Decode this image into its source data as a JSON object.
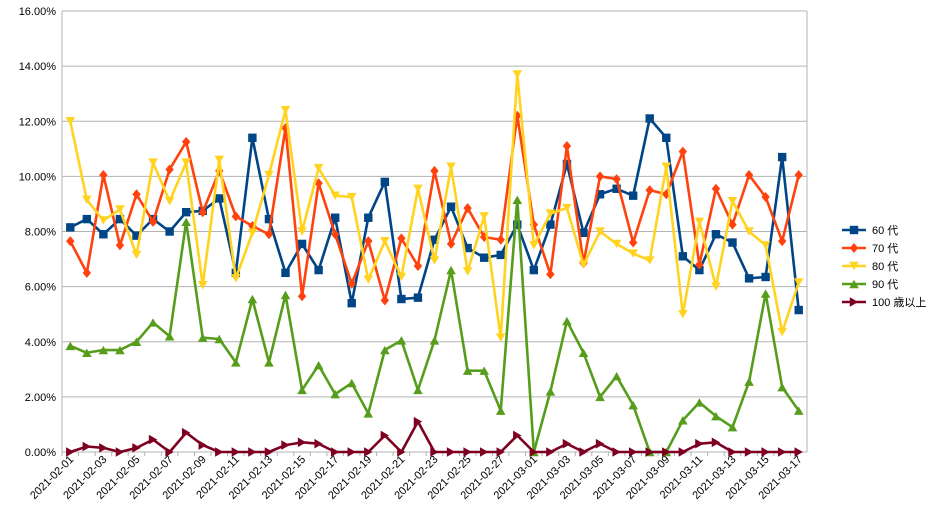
{
  "chart_data": {
    "type": "line",
    "x": [
      "2021-02-01",
      "2021-02-02",
      "2021-02-03",
      "2021-02-04",
      "2021-02-05",
      "2021-02-06",
      "2021-02-07",
      "2021-02-08",
      "2021-02-09",
      "2021-02-10",
      "2021-02-11",
      "2021-02-12",
      "2021-02-13",
      "2021-02-14",
      "2021-02-15",
      "2021-02-16",
      "2021-02-17",
      "2021-02-18",
      "2021-02-19",
      "2021-02-20",
      "2021-02-21",
      "2021-02-22",
      "2021-02-23",
      "2021-02-24",
      "2021-02-25",
      "2021-02-26",
      "2021-02-27",
      "2021-02-28",
      "2021-03-01",
      "2021-03-02",
      "2021-03-03",
      "2021-03-04",
      "2021-03-05",
      "2021-03-06",
      "2021-03-07",
      "2021-03-08",
      "2021-03-09",
      "2021-03-10",
      "2021-03-11",
      "2021-03-12",
      "2021-03-13",
      "2021-03-14",
      "2021-03-15",
      "2021-03-16",
      "2021-03-17"
    ],
    "x_tick_labels": [
      "2021-02-01",
      "2021-02-03",
      "2021-02-05",
      "2021-02-07",
      "2021-02-09",
      "2021-02-11",
      "2021-02-13",
      "2021-02-15",
      "2021-02-17",
      "2021-02-19",
      "2021-02-21",
      "2021-02-23",
      "2021-02-25",
      "2021-02-27",
      "2021-03-01",
      "2021-03-03",
      "2021-03-05",
      "2021-03-07",
      "2021-03-09",
      "2021-03-11",
      "2021-03-13",
      "2021-03-15",
      "2021-03-17"
    ],
    "y_tick_labels": [
      "0.00%",
      "2.00%",
      "4.00%",
      "6.00%",
      "8.00%",
      "10.00%",
      "12.00%",
      "14.00%",
      "16.00%"
    ],
    "ylim": [
      0,
      16
    ],
    "y_unit": "%",
    "grid": true,
    "legend_position": "right",
    "series": [
      {
        "name": "60 代",
        "color": "#004586",
        "marker": "square",
        "values": [
          8.15,
          8.45,
          7.9,
          8.45,
          7.85,
          8.45,
          8.0,
          8.7,
          8.75,
          9.2,
          6.5,
          11.4,
          8.45,
          6.5,
          7.55,
          6.6,
          8.5,
          5.4,
          8.5,
          9.8,
          5.55,
          5.6,
          7.7,
          8.9,
          7.4,
          7.05,
          7.15,
          8.25,
          6.6,
          8.25,
          10.45,
          7.95,
          9.35,
          9.55,
          9.3,
          12.1,
          11.4,
          7.1,
          6.6,
          7.9,
          7.6,
          6.3,
          6.35,
          10.7,
          5.15
        ]
      },
      {
        "name": "70 代",
        "color": "#ff420e",
        "marker": "diamond",
        "values": [
          7.65,
          6.5,
          10.05,
          7.5,
          9.35,
          8.35,
          10.25,
          11.25,
          8.7,
          10.2,
          8.55,
          8.2,
          7.9,
          11.75,
          5.65,
          9.75,
          7.9,
          6.1,
          7.65,
          5.5,
          7.75,
          6.75,
          10.2,
          7.55,
          8.85,
          7.8,
          7.7,
          12.2,
          8.25,
          6.45,
          11.1,
          6.85,
          10.0,
          9.9,
          7.6,
          9.5,
          9.35,
          10.9,
          6.8,
          9.55,
          8.25,
          10.05,
          9.25,
          7.65,
          10.05
        ]
      },
      {
        "name": "80 代",
        "color": "#ffd320",
        "marker": "triangle-down",
        "values": [
          12.0,
          9.15,
          8.4,
          8.8,
          7.15,
          10.5,
          9.1,
          10.5,
          6.05,
          10.6,
          6.3,
          7.95,
          10.05,
          12.4,
          8.0,
          10.3,
          9.3,
          9.25,
          6.25,
          7.65,
          6.35,
          9.55,
          6.95,
          10.35,
          6.55,
          8.55,
          4.15,
          13.7,
          7.5,
          8.65,
          8.85,
          6.8,
          8.0,
          7.55,
          7.2,
          6.95,
          10.35,
          5.0,
          8.35,
          6.0,
          9.1,
          8.0,
          7.5,
          4.35,
          6.15
        ]
      },
      {
        "name": "90 代",
        "color": "#579d1c",
        "marker": "triangle-up",
        "values": [
          3.85,
          3.6,
          3.7,
          3.7,
          4.0,
          4.7,
          4.2,
          8.35,
          4.15,
          4.1,
          3.25,
          5.55,
          3.25,
          5.7,
          2.25,
          3.15,
          2.1,
          2.5,
          1.4,
          3.7,
          4.05,
          2.25,
          4.05,
          6.6,
          2.95,
          2.95,
          1.5,
          9.15,
          0.0,
          2.2,
          4.75,
          3.6,
          2.0,
          2.75,
          1.7,
          0.0,
          0.0,
          1.15,
          1.8,
          1.3,
          0.9,
          2.55,
          5.75,
          2.35,
          1.5
        ]
      },
      {
        "name": "100 歳以上",
        "color": "#7e0021",
        "marker": "triangle-right",
        "values": [
          0.0,
          0.2,
          0.15,
          0.0,
          0.15,
          0.45,
          0.0,
          0.7,
          0.25,
          0.0,
          0.0,
          0.0,
          0.0,
          0.25,
          0.35,
          0.3,
          0.0,
          0.0,
          0.0,
          0.6,
          0.0,
          1.1,
          0.0,
          0.0,
          0.0,
          0.0,
          0.0,
          0.6,
          0.0,
          0.0,
          0.3,
          0.0,
          0.3,
          0.0,
          0.0,
          0.0,
          0.0,
          0.0,
          0.3,
          0.35,
          0.0,
          0.0,
          0.0,
          0.0,
          0.0
        ]
      }
    ]
  }
}
